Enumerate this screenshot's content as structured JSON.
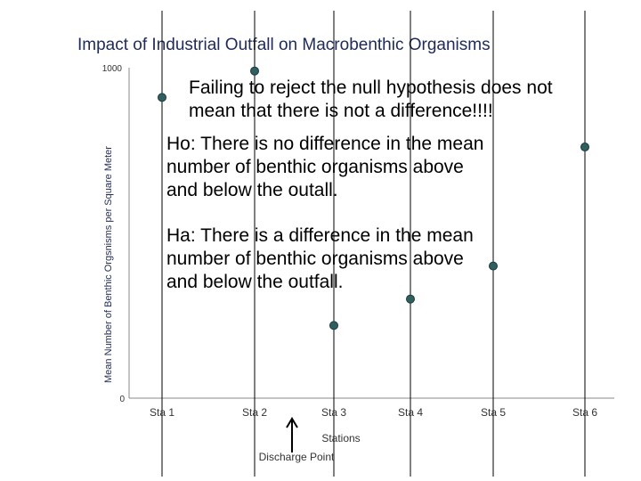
{
  "chart_data": {
    "type": "scatter",
    "title": "Impact of Industrial Outfall on Macrobenthic Organisms",
    "xlabel": "Stations",
    "ylabel": "Mean Number of Benthic Orgsnisms per Square Meter",
    "categories": [
      "Sta 1",
      "Sta 2",
      "Sta 3",
      "Sta 4",
      "Sta 5",
      "Sta 6"
    ],
    "values": [
      910,
      990,
      220,
      300,
      400,
      760
    ],
    "ylim": [
      0,
      1000
    ],
    "yticks": [
      "0",
      "1000"
    ],
    "grid": false,
    "colors": {
      "marker": "#2f5f5f",
      "marker_edge": "#1a3a3a",
      "stem": "#000000",
      "title": "#1f2a5a"
    }
  },
  "annotations": {
    "note": "Failing to reject the null hypothesis does not\nmean that there is not a difference!!!!",
    "ho": "Ho: There is no difference in the mean\nnumber of benthic organisms above\nand below the outall.",
    "ha": "Ha: There is a difference in the mean\nnumber of benthic organisms above\nand below the outfall."
  },
  "discharge": {
    "label": "Discharge Point",
    "icon": "up-arrow-icon"
  }
}
